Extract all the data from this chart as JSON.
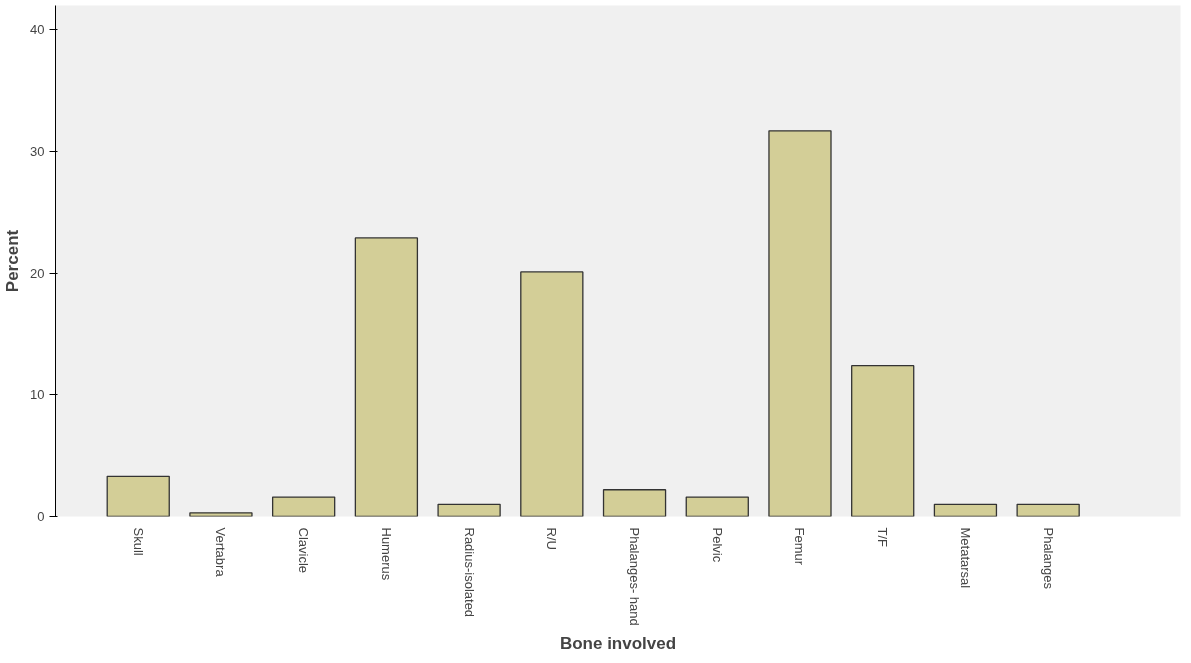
{
  "chart_data": {
    "type": "bar",
    "xlabel": "Bone involved",
    "ylabel": "Percent",
    "categories": [
      "Skull",
      "Vertabra",
      "Clavicle",
      "Humerus",
      "Radius-isolated",
      "R/U",
      "Phalanges- hand",
      "Pelvic",
      "Femur",
      "T/F",
      "Metatarsal",
      "Phalanges"
    ],
    "values": [
      3.3,
      0.3,
      1.6,
      22.9,
      1.0,
      20.1,
      2.2,
      1.6,
      31.7,
      12.4,
      1.0,
      1.0
    ],
    "color": "#d3ce97",
    "ylim": [
      0,
      42
    ],
    "yticks": [
      0,
      10,
      20,
      30,
      40
    ],
    "grid": false
  }
}
